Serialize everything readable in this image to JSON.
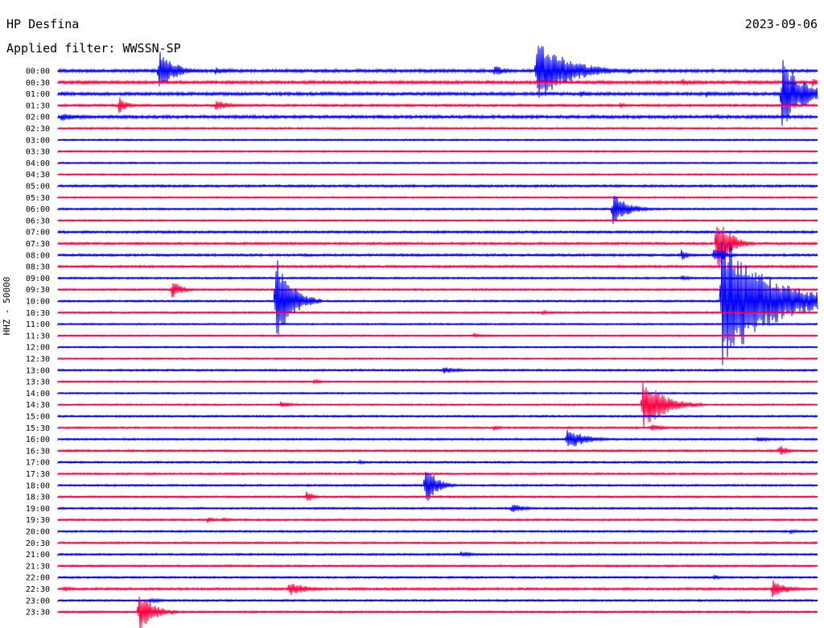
{
  "header": {
    "station": "HP Desfina",
    "date": "2023-09-06",
    "filter_label": "Applied filter: WWSSN-SP"
  },
  "colors": {
    "odd_rows": "#0000ff",
    "even_rows": "#ff0040",
    "background": "#ffffff"
  },
  "chart_data": {
    "type": "line",
    "title": "HP Desfina",
    "subtitle": "Applied filter: WWSSN-SP",
    "ylabel": "HHZ - 50000",
    "xlabel": "",
    "row_labels": [
      "00:00",
      "00:30",
      "01:00",
      "01:30",
      "02:00",
      "02:30",
      "03:00",
      "03:30",
      "04:00",
      "04:30",
      "05:00",
      "05:30",
      "06:00",
      "06:30",
      "07:00",
      "07:30",
      "08:00",
      "08:30",
      "09:00",
      "09:30",
      "10:00",
      "10:30",
      "11:00",
      "11:30",
      "12:00",
      "12:30",
      "13:00",
      "13:30",
      "14:00",
      "14:30",
      "15:00",
      "15:30",
      "16:00",
      "16:30",
      "17:00",
      "17:30",
      "18:00",
      "18:30",
      "19:00",
      "19:30",
      "20:00",
      "20:30",
      "21:00",
      "21:30",
      "22:00",
      "22:30",
      "23:00",
      "23:30"
    ],
    "x_range_minutes": [
      0,
      30
    ],
    "row_colors_alternate": [
      "blue",
      "red"
    ],
    "noise_levels": [
      2,
      2,
      2,
      1.5,
      2,
      1.2,
      1,
      1,
      1,
      1,
      1.5,
      1,
      1.2,
      1,
      1.5,
      1.5,
      1.5,
      1.5,
      1.2,
      1.2,
      1.2,
      1.2,
      1,
      1,
      1,
      1,
      1.2,
      1,
      1,
      1,
      1.2,
      1.2,
      1.2,
      1.2,
      1.2,
      1.2,
      1.2,
      1.2,
      1.2,
      1.2,
      1.2,
      1.2,
      1.2,
      1.2,
      1.2,
      1.5,
      1.2,
      1.2
    ],
    "events": [
      {
        "row": 0,
        "minute": 4.0,
        "amplitude": 26,
        "duration": 0.6
      },
      {
        "row": 0,
        "minute": 6.2,
        "amplitude": 5,
        "duration": 0.8
      },
      {
        "row": 0,
        "minute": 17.2,
        "amplitude": 8,
        "duration": 0.5
      },
      {
        "row": 0,
        "minute": 18.9,
        "amplitude": 42,
        "duration": 1.2
      },
      {
        "row": 0,
        "minute": 22.5,
        "amplitude": 5,
        "duration": 0.3
      },
      {
        "row": 1,
        "minute": 1.0,
        "amplitude": 3,
        "duration": 1.0
      },
      {
        "row": 1,
        "minute": 24.6,
        "amplitude": 5,
        "duration": 0.6
      },
      {
        "row": 1,
        "minute": 29.8,
        "amplitude": 6,
        "duration": 0.4
      },
      {
        "row": 2,
        "minute": 0.1,
        "amplitude": 4,
        "duration": 0.4
      },
      {
        "row": 2,
        "minute": 20.6,
        "amplitude": 5,
        "duration": 0.4
      },
      {
        "row": 2,
        "minute": 28.6,
        "amplitude": 45,
        "duration": 0.8
      },
      {
        "row": 2,
        "minute": 25.6,
        "amplitude": 5,
        "duration": 0.3
      },
      {
        "row": 3,
        "minute": 2.4,
        "amplitude": 12,
        "duration": 0.3
      },
      {
        "row": 3,
        "minute": 6.2,
        "amplitude": 8,
        "duration": 0.5
      },
      {
        "row": 3,
        "minute": 22.2,
        "amplitude": 4,
        "duration": 0.3
      },
      {
        "row": 4,
        "minute": 0.1,
        "amplitude": 5,
        "duration": 1.0
      },
      {
        "row": 4,
        "minute": 12.6,
        "amplitude": 3,
        "duration": 0.5
      },
      {
        "row": 4,
        "minute": 26.0,
        "amplitude": 3,
        "duration": 0.5
      },
      {
        "row": 12,
        "minute": 21.9,
        "amplitude": 20,
        "duration": 0.6
      },
      {
        "row": 15,
        "minute": 26.0,
        "amplitude": 40,
        "duration": 0.5
      },
      {
        "row": 16,
        "minute": 24.6,
        "amplitude": 8,
        "duration": 0.3
      },
      {
        "row": 16,
        "minute": 25.9,
        "amplitude": 10,
        "duration": 0.5
      },
      {
        "row": 18,
        "minute": 24.6,
        "amplitude": 4,
        "duration": 0.4
      },
      {
        "row": 19,
        "minute": 4.5,
        "amplitude": 12,
        "duration": 0.4
      },
      {
        "row": 20,
        "minute": 8.6,
        "amplitude": 58,
        "duration": 0.6
      },
      {
        "row": 20,
        "minute": 26.2,
        "amplitude": 90,
        "duration": 1.8
      },
      {
        "row": 21,
        "minute": 19.1,
        "amplitude": 3,
        "duration": 0.5
      },
      {
        "row": 23,
        "minute": 16.4,
        "amplitude": 3,
        "duration": 0.6
      },
      {
        "row": 26,
        "minute": 15.2,
        "amplitude": 5,
        "duration": 0.6
      },
      {
        "row": 27,
        "minute": 10.1,
        "amplitude": 3,
        "duration": 0.4
      },
      {
        "row": 29,
        "minute": 23.1,
        "amplitude": 34,
        "duration": 0.8
      },
      {
        "row": 29,
        "minute": 8.8,
        "amplitude": 4,
        "duration": 0.5
      },
      {
        "row": 31,
        "minute": 23.4,
        "amplitude": 5,
        "duration": 0.5
      },
      {
        "row": 31,
        "minute": 17.2,
        "amplitude": 4,
        "duration": 0.3
      },
      {
        "row": 32,
        "minute": 20.1,
        "amplitude": 14,
        "duration": 0.7
      },
      {
        "row": 32,
        "minute": 27.6,
        "amplitude": 3,
        "duration": 1.0
      },
      {
        "row": 33,
        "minute": 28.5,
        "amplitude": 9,
        "duration": 0.3
      },
      {
        "row": 34,
        "minute": 11.9,
        "amplitude": 3,
        "duration": 0.3
      },
      {
        "row": 36,
        "minute": 14.5,
        "amplitude": 30,
        "duration": 0.4
      },
      {
        "row": 37,
        "minute": 9.8,
        "amplitude": 8,
        "duration": 0.3
      },
      {
        "row": 38,
        "minute": 17.9,
        "amplitude": 7,
        "duration": 0.5
      },
      {
        "row": 39,
        "minute": 5.9,
        "amplitude": 4,
        "duration": 0.4
      },
      {
        "row": 39,
        "minute": 6.5,
        "amplitude": 4,
        "duration": 0.3
      },
      {
        "row": 40,
        "minute": 28.9,
        "amplitude": 3,
        "duration": 0.5
      },
      {
        "row": 42,
        "minute": 15.9,
        "amplitude": 4,
        "duration": 0.6
      },
      {
        "row": 44,
        "minute": 25.9,
        "amplitude": 4,
        "duration": 0.3
      },
      {
        "row": 45,
        "minute": 0.2,
        "amplitude": 4,
        "duration": 0.4
      },
      {
        "row": 45,
        "minute": 9.1,
        "amplitude": 10,
        "duration": 0.7
      },
      {
        "row": 45,
        "minute": 28.2,
        "amplitude": 12,
        "duration": 0.6
      },
      {
        "row": 46,
        "minute": 3.6,
        "amplitude": 4,
        "duration": 0.5
      },
      {
        "row": 47,
        "minute": 3.2,
        "amplitude": 30,
        "duration": 0.5
      },
      {
        "row": 47,
        "minute": 4.5,
        "amplitude": 4,
        "duration": 0.2
      }
    ],
    "grid": false,
    "legend": "none"
  }
}
